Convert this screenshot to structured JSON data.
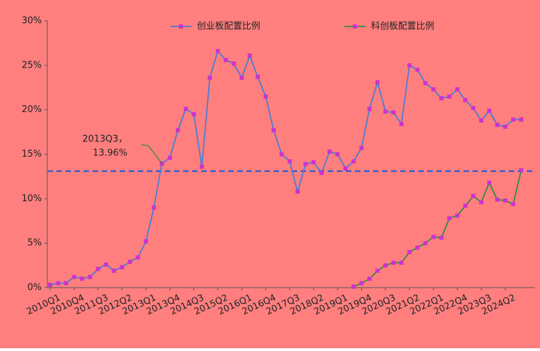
{
  "chart_data": {
    "type": "line",
    "categories": [
      "2010Q1",
      null,
      null,
      "2010Q4",
      null,
      null,
      "2011Q3",
      null,
      null,
      "2012Q2",
      null,
      null,
      "2013Q1",
      null,
      null,
      "2013Q4",
      null,
      null,
      "2014Q3",
      null,
      null,
      "2015Q2",
      null,
      null,
      "2016Q1",
      null,
      null,
      "2016Q4",
      null,
      null,
      "2017Q3",
      null,
      null,
      "2018Q2",
      null,
      null,
      "2019Q1",
      null,
      null,
      "2019Q4",
      null,
      null,
      "2020Q3",
      null,
      null,
      "2021Q2",
      null,
      null,
      "2022Q1",
      null,
      null,
      "2022Q4",
      null,
      null,
      "2023Q3",
      null,
      null,
      "2024Q2",
      null,
      null
    ],
    "series": [
      {
        "name": "创业板配置比例",
        "color": "#4a7bd6",
        "marker_color": "#cc33cc",
        "values": [
          0.3,
          0.5,
          0.5,
          1.2,
          1.0,
          1.2,
          2.1,
          2.6,
          1.9,
          2.3,
          2.9,
          3.4,
          5.2,
          9.0,
          13.96,
          14.6,
          17.7,
          20.1,
          19.5,
          13.6,
          23.6,
          26.6,
          25.6,
          25.2,
          23.6,
          26.1,
          23.7,
          21.5,
          17.7,
          15.0,
          14.2,
          10.8,
          13.9,
          14.1,
          12.9,
          15.3,
          15.0,
          13.4,
          14.2,
          15.7,
          20.1,
          23.1,
          19.8,
          19.7,
          18.4,
          25.0,
          24.5,
          23.0,
          22.3,
          21.3,
          21.5,
          22.3,
          21.1,
          20.2,
          18.8,
          19.9,
          18.3,
          18.1,
          18.9,
          18.9
        ]
      },
      {
        "name": "科创板配置比例",
        "color": "#2e8b3e",
        "marker_color": "#cc33cc",
        "values": [
          null,
          null,
          null,
          null,
          null,
          null,
          null,
          null,
          null,
          null,
          null,
          null,
          null,
          null,
          null,
          null,
          null,
          null,
          null,
          null,
          null,
          null,
          null,
          null,
          null,
          null,
          null,
          null,
          null,
          null,
          null,
          null,
          null,
          null,
          null,
          null,
          null,
          null,
          0.1,
          0.5,
          1.0,
          1.9,
          2.5,
          2.8,
          2.8,
          4.0,
          4.5,
          5.0,
          5.7,
          5.6,
          7.8,
          8.1,
          9.2,
          10.3,
          9.6,
          11.8,
          9.9,
          9.8,
          9.4,
          13.2
        ]
      }
    ],
    "ylim": [
      0,
      30
    ],
    "yticks": [
      {
        "value": 0,
        "label": "0%"
      },
      {
        "value": 5,
        "label": "5%"
      },
      {
        "value": 10,
        "label": "10%"
      },
      {
        "value": 15,
        "label": "15%"
      },
      {
        "value": 20,
        "label": "20%"
      },
      {
        "value": 25,
        "label": "25%"
      },
      {
        "value": 30,
        "label": "30%"
      }
    ],
    "reference_line": {
      "value": 13.1,
      "color": "#3a5fcd"
    },
    "annotation": {
      "lines": [
        "2013Q3，",
        "13.96%"
      ],
      "color": "#2e8b3e"
    },
    "background": "#ff7f7f",
    "grid": false
  }
}
